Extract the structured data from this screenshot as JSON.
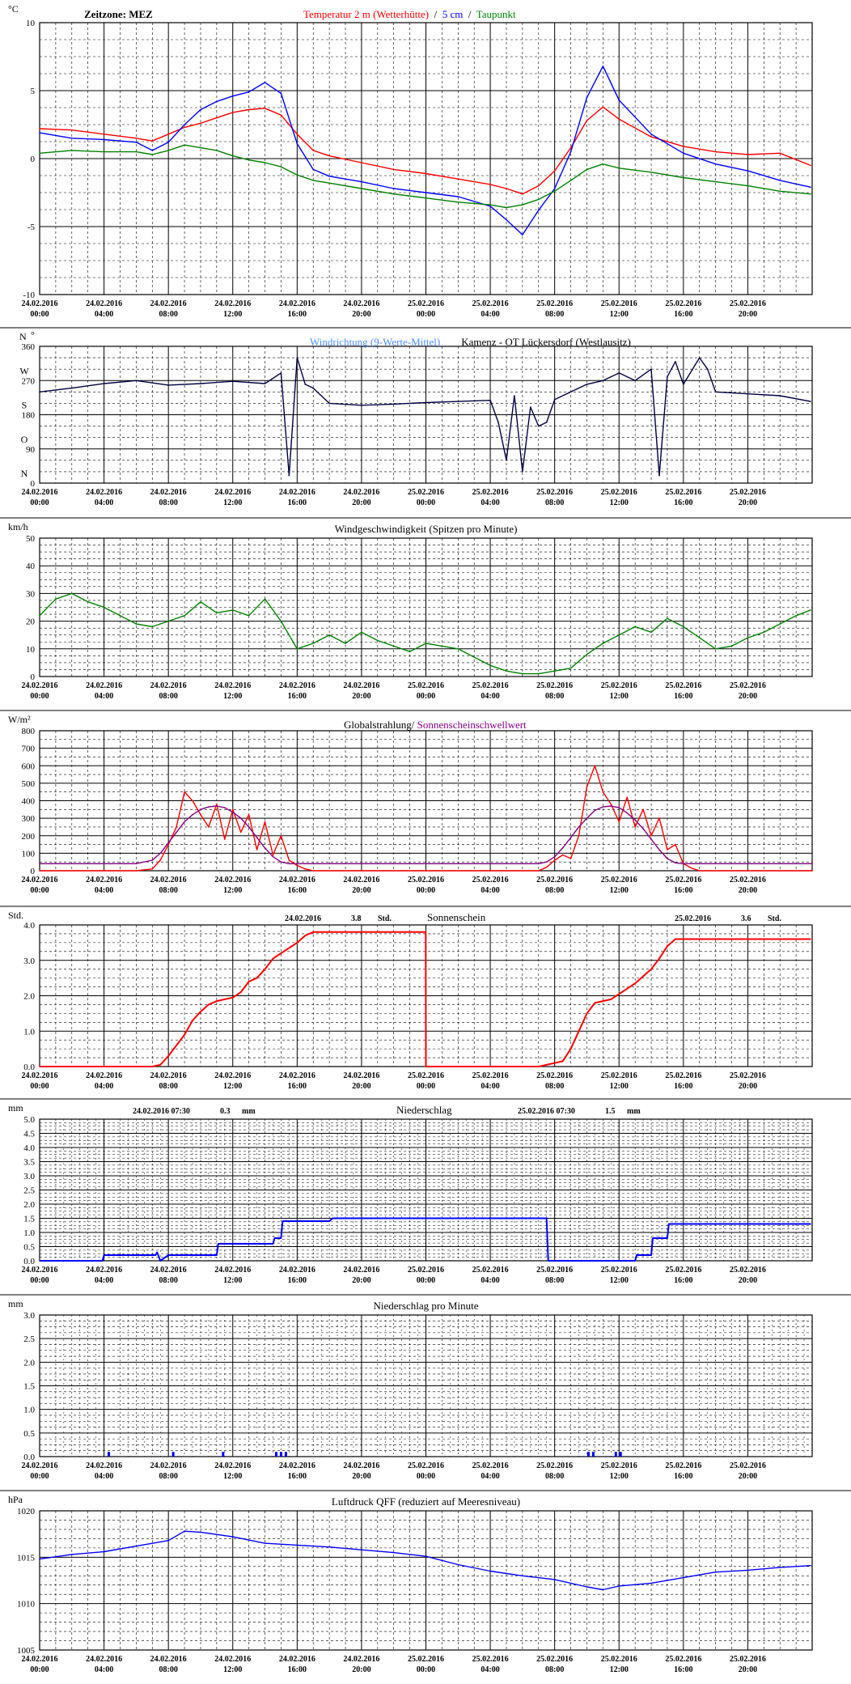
{
  "colors": {
    "temp2m": "#ff0000",
    "temp5cm": "#0000ff",
    "dewpoint": "#008000",
    "winddir_raw": "#4d8fff",
    "winddir_avg": "#000040",
    "wind": "#008000",
    "global": "#ff0000",
    "threshold": "#800080",
    "sunshine": "#ff0000",
    "precip": "#0000ff",
    "pressure": "#0000ff"
  },
  "x_ticks": [
    {
      "date": "24.02.2016",
      "time": "00:00"
    },
    {
      "date": "24.02.2016",
      "time": "04:00"
    },
    {
      "date": "24.02.2016",
      "time": "08:00"
    },
    {
      "date": "24.02.2016",
      "time": "12:00"
    },
    {
      "date": "24.02.2016",
      "time": "16:00"
    },
    {
      "date": "24.02.2016",
      "time": "20:00"
    },
    {
      "date": "25.02.2016",
      "time": "00:00"
    },
    {
      "date": "25.02.2016",
      "time": "04:00"
    },
    {
      "date": "25.02.2016",
      "time": "08:00"
    },
    {
      "date": "25.02.2016",
      "time": "12:00"
    },
    {
      "date": "25.02.2016",
      "time": "16:00"
    },
    {
      "date": "25.02.2016",
      "time": "20:00"
    }
  ],
  "chart_data": [
    {
      "id": "temperature",
      "type": "line",
      "unit": "°C",
      "title_left": "Zeitzone: MEZ",
      "title_parts": [
        "Temperatur 2 m (Wetterhütte)",
        "  /  ",
        "5 cm",
        "  /  ",
        "Taupunkt"
      ],
      "ylim": [
        -10,
        10
      ],
      "y_ticks": [
        "10",
        "5",
        "0",
        "-5",
        "-10"
      ],
      "x": [
        0,
        2,
        4,
        6,
        7,
        8,
        9,
        10,
        11,
        12,
        13,
        14,
        15,
        16,
        17,
        18,
        20,
        22,
        24,
        26,
        28,
        29,
        30,
        31,
        32,
        33,
        34,
        35,
        36,
        38,
        40,
        42,
        44,
        46,
        47.9
      ],
      "series": [
        {
          "name": "Temperatur 2 m (Wetterhütte)",
          "color": "temp2m",
          "values": [
            2.2,
            2.1,
            1.8,
            1.5,
            1.3,
            1.8,
            2.3,
            2.6,
            3.0,
            3.4,
            3.6,
            3.7,
            3.2,
            1.8,
            0.6,
            0.2,
            -0.3,
            -0.8,
            -1.1,
            -1.5,
            -1.9,
            -2.2,
            -2.6,
            -2.0,
            -0.9,
            0.8,
            2.8,
            3.8,
            2.9,
            1.6,
            0.9,
            0.5,
            0.3,
            0.4,
            -0.5
          ]
        },
        {
          "name": "5 cm",
          "color": "temp5cm",
          "values": [
            1.9,
            1.5,
            1.4,
            1.2,
            0.6,
            1.2,
            2.5,
            3.6,
            4.2,
            4.6,
            4.9,
            5.6,
            4.8,
            1.1,
            -0.8,
            -1.3,
            -1.7,
            -2.2,
            -2.5,
            -2.8,
            -3.5,
            -4.5,
            -5.6,
            -3.8,
            -2.2,
            0.5,
            4.5,
            6.8,
            4.3,
            1.8,
            0.4,
            -0.4,
            -0.9,
            -1.6,
            -2.1
          ]
        },
        {
          "name": "Taupunkt",
          "color": "dewpoint",
          "values": [
            0.4,
            0.6,
            0.5,
            0.5,
            0.3,
            0.6,
            1.0,
            0.8,
            0.6,
            0.2,
            -0.1,
            -0.3,
            -0.6,
            -1.2,
            -1.6,
            -1.8,
            -2.2,
            -2.6,
            -2.9,
            -3.2,
            -3.4,
            -3.6,
            -3.4,
            -3.0,
            -2.4,
            -1.6,
            -0.8,
            -0.4,
            -0.7,
            -1.0,
            -1.4,
            -1.7,
            -2.0,
            -2.4,
            -2.6
          ]
        }
      ]
    },
    {
      "id": "winddir",
      "type": "line",
      "unit_left": "N",
      "unit_right": "°",
      "title_parts": [
        "Windrichtung (9-Werte-Mittel)",
        "        ",
        "Kamenz - OT Lückersdorf (Westlausitz)"
      ],
      "ylim": [
        0,
        360
      ],
      "y_ticks": [
        "360",
        "270",
        "180",
        "90",
        "0"
      ],
      "compass": [
        "N",
        "W",
        "S",
        "O",
        "N"
      ],
      "x": [
        0,
        2,
        4,
        6,
        8,
        10,
        12,
        14,
        15,
        15.5,
        16,
        16.5,
        17,
        18,
        20,
        22,
        24,
        26,
        28,
        28.5,
        29,
        29.5,
        30,
        30.5,
        31,
        31.5,
        32,
        33,
        34,
        35,
        36,
        37,
        38,
        38.5,
        39,
        39.5,
        40,
        41,
        41.5,
        42,
        44,
        46,
        47.9
      ],
      "series": [
        {
          "name": "Windrichtung (9-Werte-Mittel)",
          "color": "winddir_avg",
          "values": [
            240,
            250,
            262,
            270,
            258,
            262,
            268,
            262,
            290,
            20,
            330,
            260,
            250,
            210,
            205,
            208,
            212,
            215,
            218,
            160,
            60,
            230,
            30,
            200,
            150,
            160,
            220,
            240,
            260,
            270,
            290,
            270,
            300,
            20,
            280,
            320,
            260,
            330,
            300,
            240,
            235,
            230,
            215
          ]
        }
      ]
    },
    {
      "id": "windspeed",
      "type": "line",
      "unit": "km/h",
      "title": "Windgeschwindigkeit (Spitzen pro Minute)",
      "ylim": [
        0,
        50
      ],
      "y_ticks": [
        "50",
        "40",
        "30",
        "20",
        "10",
        "0"
      ],
      "x": [
        0,
        1,
        2,
        3,
        4,
        5,
        6,
        7,
        8,
        9,
        10,
        11,
        12,
        13,
        14,
        15,
        16,
        17,
        18,
        19,
        20,
        21,
        22,
        23,
        24,
        25,
        26,
        27,
        28,
        29,
        30,
        31,
        32,
        33,
        34,
        35,
        36,
        37,
        38,
        39,
        40,
        41,
        42,
        43,
        44,
        45,
        46,
        47,
        47.9
      ],
      "series": [
        {
          "name": "Windgeschwindigkeit (Spitzen pro Minute)",
          "color": "wind",
          "values": [
            22,
            28,
            30,
            27,
            25,
            22,
            19,
            18,
            20,
            22,
            27,
            23,
            24,
            22,
            28,
            20,
            10,
            12,
            15,
            12,
            16,
            13,
            11,
            9,
            12,
            11,
            10,
            7,
            4,
            2,
            1,
            1,
            2,
            3,
            8,
            12,
            15,
            18,
            16,
            21,
            18,
            14,
            10,
            11,
            14,
            16,
            19,
            22,
            24
          ]
        }
      ]
    },
    {
      "id": "radiation",
      "type": "line",
      "unit": "W/m²",
      "title_parts": [
        "Globalstrahlung/ ",
        "Sonnenscheinschwellwert"
      ],
      "ylim": [
        0,
        800
      ],
      "y_ticks": [
        "800",
        "700",
        "600",
        "500",
        "400",
        "300",
        "200",
        "100",
        "0"
      ],
      "x": [
        0,
        6,
        7,
        7.5,
        8,
        8.5,
        9,
        9.5,
        10,
        10.5,
        11,
        11.5,
        12,
        12.5,
        13,
        13.5,
        14,
        14.5,
        15,
        15.5,
        16,
        16.5,
        17,
        24,
        31,
        31.5,
        32,
        32.5,
        33,
        33.5,
        34,
        34.5,
        35,
        35.5,
        36,
        36.5,
        37,
        37.5,
        38,
        38.5,
        39,
        39.5,
        40,
        40.5,
        41,
        48
      ],
      "series": [
        {
          "name": "Globalstrahlung",
          "color": "global",
          "values": [
            0,
            0,
            10,
            60,
            150,
            250,
            450,
            400,
            320,
            250,
            380,
            180,
            350,
            220,
            320,
            120,
            280,
            90,
            200,
            60,
            30,
            10,
            0,
            0,
            0,
            20,
            60,
            90,
            70,
            200,
            480,
            600,
            450,
            380,
            280,
            420,
            250,
            350,
            200,
            300,
            120,
            150,
            40,
            15,
            0,
            0
          ]
        },
        {
          "name": "Sonnenscheinschwellwert",
          "color": "threshold",
          "values": [
            40,
            40,
            60,
            100,
            160,
            220,
            280,
            320,
            350,
            365,
            370,
            360,
            335,
            300,
            250,
            190,
            130,
            80,
            50,
            40,
            40,
            40,
            40,
            40,
            40,
            50,
            80,
            130,
            190,
            250,
            300,
            345,
            365,
            370,
            360,
            330,
            290,
            240,
            180,
            120,
            70,
            45,
            40,
            40,
            40,
            40
          ]
        }
      ]
    },
    {
      "id": "sunshine",
      "type": "line",
      "unit": "Std.",
      "title": "Sonnenschein",
      "annotations": [
        {
          "date": "24.02.2016",
          "value": "3.8",
          "unit": "Std."
        },
        {
          "date": "25.02.2016",
          "value": "3.6",
          "unit": "Std."
        }
      ],
      "ylim": [
        0,
        4
      ],
      "y_ticks": [
        "4.0",
        "3.0",
        "2.0",
        "1.0",
        "0.0"
      ],
      "x": [
        0,
        7,
        7.5,
        8,
        8.5,
        9,
        9.5,
        10,
        10.5,
        11,
        11.5,
        12,
        12.5,
        13,
        13.5,
        14,
        14.5,
        15,
        15.5,
        16,
        16.5,
        17,
        23.99,
        24,
        31,
        31.5,
        32,
        32.5,
        33,
        33.5,
        34,
        34.5,
        35,
        35.5,
        36,
        36.5,
        37,
        37.5,
        38,
        38.5,
        39,
        39.5,
        40,
        47.9
      ],
      "series": [
        {
          "name": "Sonnenschein",
          "color": "sunshine",
          "values": [
            0,
            0,
            0.05,
            0.3,
            0.6,
            0.9,
            1.3,
            1.55,
            1.75,
            1.85,
            1.9,
            1.95,
            2.1,
            2.4,
            2.5,
            2.75,
            3.05,
            3.2,
            3.35,
            3.5,
            3.7,
            3.8,
            3.8,
            0,
            0,
            0.05,
            0.1,
            0.15,
            0.5,
            1.0,
            1.5,
            1.8,
            1.85,
            1.9,
            2.05,
            2.2,
            2.35,
            2.55,
            2.75,
            3.05,
            3.4,
            3.6,
            3.6,
            3.6
          ]
        }
      ]
    },
    {
      "id": "precip",
      "type": "line",
      "unit": "mm",
      "title": "Niederschlag",
      "annotations": [
        {
          "date": "24.02.2016 07:30",
          "value": "0.3",
          "unit": "mm"
        },
        {
          "date": "25.02.2016 07:30",
          "value": "1.5",
          "unit": "mm"
        }
      ],
      "ylim": [
        0,
        5
      ],
      "y_ticks": [
        "5.0",
        "4.5",
        "4.0",
        "3.5",
        "3.0",
        "2.5",
        "2.0",
        "1.5",
        "1.0",
        "0.5",
        "0.0"
      ],
      "x": [
        0,
        3.9,
        4,
        7.2,
        7.3,
        7.5,
        8,
        11,
        11.1,
        14.5,
        14.6,
        15,
        15.1,
        18,
        18.2,
        31.5,
        31.6,
        37,
        37.1,
        38,
        38.1,
        39,
        39.1,
        47.9
      ],
      "series": [
        {
          "name": "Niederschlag",
          "color": "precip",
          "values": [
            0,
            0,
            0.2,
            0.2,
            0.3,
            0,
            0.2,
            0.2,
            0.6,
            0.6,
            0.8,
            0.8,
            1.4,
            1.4,
            1.5,
            1.5,
            0,
            0,
            0.2,
            0.2,
            0.8,
            0.8,
            1.3,
            1.3
          ]
        }
      ]
    },
    {
      "id": "precip_minute",
      "type": "bar",
      "unit": "mm",
      "title": "Niederschlag pro Minute",
      "ylim": [
        0,
        3
      ],
      "y_ticks": [
        "3.0",
        "2.5",
        "2.0",
        "1.5",
        "1.0",
        "0.5",
        "0.0"
      ],
      "x": [
        4.3,
        8.3,
        11.4,
        14.7,
        15.0,
        15.3,
        34.1,
        34.4,
        35.8,
        36.1
      ],
      "values": [
        0.1,
        0.1,
        0.1,
        0.1,
        0.1,
        0.1,
        0.1,
        0.1,
        0.1,
        0.1
      ],
      "color": "precip"
    },
    {
      "id": "pressure",
      "type": "line",
      "unit": "hPa",
      "title": "Luftdruck QFF (reduziert auf Meeresniveau)",
      "ylim": [
        1005,
        1020
      ],
      "y_ticks": [
        "1020",
        "1015",
        "1010",
        "1005"
      ],
      "x": [
        0,
        2,
        4,
        6,
        8,
        9,
        10,
        12,
        14,
        16,
        18,
        20,
        22,
        24,
        26,
        28,
        30,
        32,
        34,
        35,
        36,
        38,
        40,
        42,
        44,
        46,
        47.9
      ],
      "series": [
        {
          "name": "Luftdruck QFF",
          "color": "pressure",
          "values": [
            1014.8,
            1015.3,
            1015.6,
            1016.2,
            1016.8,
            1017.8,
            1017.7,
            1017.2,
            1016.5,
            1016.3,
            1016.1,
            1015.8,
            1015.5,
            1015.1,
            1014.2,
            1013.5,
            1013.0,
            1012.6,
            1011.8,
            1011.5,
            1011.9,
            1012.2,
            1012.8,
            1013.4,
            1013.6,
            1013.9,
            1014.1
          ]
        }
      ]
    }
  ]
}
